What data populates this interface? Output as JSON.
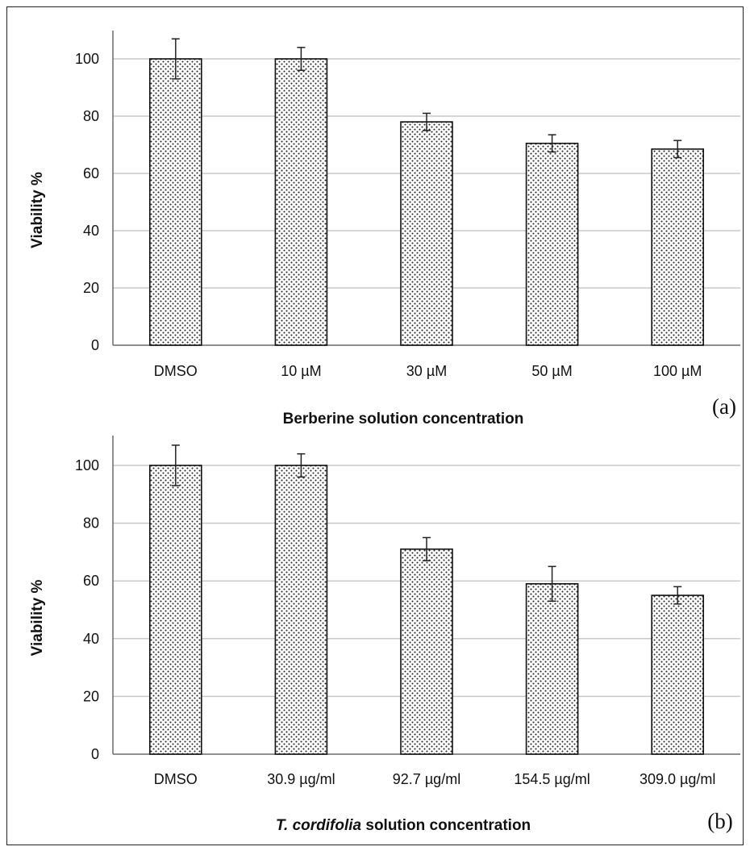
{
  "chart_data": [
    {
      "type": "bar",
      "panel_label": "(a)",
      "categories": [
        "DMSO",
        "10 µM",
        "30 µM",
        "50 µM",
        "100 µM"
      ],
      "series": [
        {
          "values": [
            100,
            100,
            78,
            70.5,
            68.5
          ],
          "errors": [
            7,
            4,
            3,
            3,
            3
          ]
        }
      ],
      "xlabel": "Berberine solution concentration",
      "xlabel_parts": [
        {
          "text": "Berberine solution concentration",
          "italic": false
        }
      ],
      "ylabel": "Viability %",
      "ylim": [
        0,
        100
      ],
      "yticks": [
        0,
        20,
        40,
        60,
        80,
        100
      ],
      "grid": true,
      "bar_fill": "dotted pattern"
    },
    {
      "type": "bar",
      "panel_label": "(b)",
      "categories": [
        "DMSO",
        "30.9 µg/ml",
        "92.7 µg/ml",
        "154.5 µg/ml",
        "309.0 µg/ml"
      ],
      "series": [
        {
          "values": [
            100,
            100,
            71,
            59,
            55
          ],
          "errors": [
            7,
            4,
            4,
            6,
            3
          ]
        }
      ],
      "xlabel": "T. cordifolia solution concentration",
      "xlabel_parts": [
        {
          "text": "T. cordifolia",
          "italic": true
        },
        {
          "text": " solution concentration",
          "italic": false
        }
      ],
      "ylabel": "Viability %",
      "ylim": [
        0,
        100
      ],
      "yticks": [
        0,
        20,
        40,
        60,
        80,
        100
      ],
      "grid": true,
      "bar_fill": "dotted pattern"
    }
  ],
  "colors": {
    "bar_outline": "#111111",
    "bar_dots": "#222222",
    "gridline": "#c8c8c8",
    "axis": "#6a6a6a"
  }
}
